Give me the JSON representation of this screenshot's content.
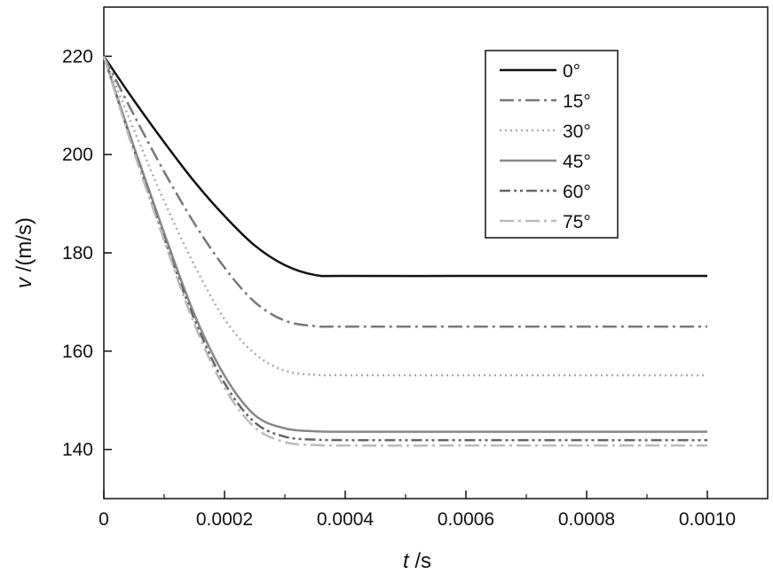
{
  "chart_data": {
    "type": "line",
    "x_unit_label": "s",
    "x_var_label": "t",
    "y_unit_label": "(m/s)",
    "y_var_label": "v",
    "xlim": [
      0,
      0.0011
    ],
    "ylim": [
      130,
      230
    ],
    "x_ticks": [
      0,
      0.0002,
      0.0004,
      0.0006,
      0.0008,
      0.001
    ],
    "x_tick_labels": [
      "0",
      "0.0002",
      "0.0004",
      "0.0006",
      "0.0008",
      "0.0010"
    ],
    "y_ticks": [
      140,
      160,
      180,
      200,
      220
    ],
    "y_tick_labels": [
      "140",
      "160",
      "180",
      "200",
      "220"
    ],
    "grid": false,
    "legend_position": "top-right",
    "series": [
      {
        "name": "0°",
        "color": "#111111",
        "dash": "solid",
        "x": [
          0,
          5e-05,
          0.0001,
          0.00015,
          0.0002,
          0.00025,
          0.0003,
          0.00035,
          0.0004,
          0.0006,
          0.0008,
          0.001
        ],
        "y": [
          220,
          211,
          202.5,
          194.5,
          187.5,
          181.5,
          177.5,
          175.5,
          175.3,
          175.3,
          175.3,
          175.3
        ]
      },
      {
        "name": "15°",
        "color": "#777777",
        "dash": "dashdot",
        "x": [
          0,
          5e-05,
          0.0001,
          0.00015,
          0.0002,
          0.00025,
          0.0003,
          0.00035,
          0.0004,
          0.0006,
          0.0008,
          0.001
        ],
        "y": [
          220,
          208,
          196.5,
          186,
          177,
          170,
          166.2,
          165.1,
          165,
          165,
          165,
          165
        ]
      },
      {
        "name": "30°",
        "color": "#aaaaaa",
        "dash": "dotted",
        "x": [
          0,
          5e-05,
          0.0001,
          0.00015,
          0.0002,
          0.00025,
          0.0003,
          0.00035,
          0.0004,
          0.0006,
          0.0008,
          0.001
        ],
        "y": [
          220,
          205,
          190.5,
          177.5,
          166.5,
          159.5,
          156,
          155.2,
          155.1,
          155.1,
          155.1,
          155.1
        ]
      },
      {
        "name": "45°",
        "color": "#888888",
        "dash": "solid",
        "x": [
          0,
          5e-05,
          0.0001,
          0.00015,
          0.0002,
          0.00025,
          0.0003,
          0.00035,
          0.0004,
          0.0006,
          0.0008,
          0.001
        ],
        "y": [
          220,
          201.5,
          184,
          167.5,
          155,
          147,
          144.3,
          143.7,
          143.6,
          143.6,
          143.6,
          143.6
        ]
      },
      {
        "name": "60°",
        "color": "#666666",
        "dash": "dashdotdot",
        "x": [
          0,
          5e-05,
          0.0001,
          0.00015,
          0.0002,
          0.00025,
          0.0003,
          0.00035,
          0.0004,
          0.0006,
          0.0008,
          0.001
        ],
        "y": [
          220,
          201,
          183,
          166.5,
          153.5,
          145.5,
          142.6,
          142,
          141.9,
          141.9,
          141.9,
          141.9
        ]
      },
      {
        "name": "75°",
        "color": "#bbbbbb",
        "dash": "dashdot",
        "x": [
          0,
          5e-05,
          0.0001,
          0.00015,
          0.0002,
          0.00025,
          0.0003,
          0.00035,
          0.0004,
          0.0006,
          0.0008,
          0.001
        ],
        "y": [
          220,
          200.5,
          182.5,
          165.5,
          152.5,
          144.5,
          141.5,
          140.9,
          140.8,
          140.8,
          140.8,
          140.8
        ]
      }
    ]
  }
}
